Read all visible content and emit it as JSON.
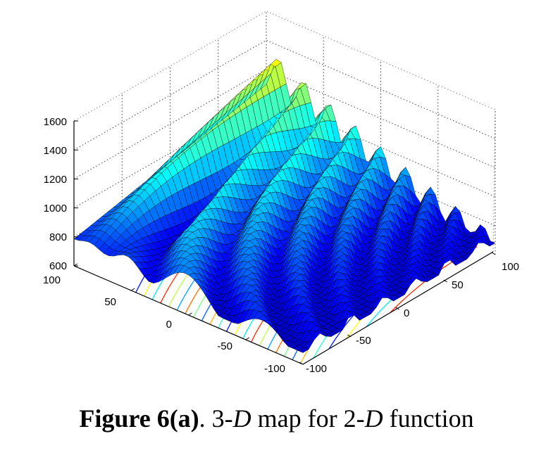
{
  "chart_data": {
    "type": "surface",
    "zlim": [
      600,
      1600
    ],
    "zticks": [
      "600",
      "800",
      "1000",
      "1200",
      "1400",
      "1600"
    ],
    "xlim": [
      -100,
      100
    ],
    "xticks": [
      "-100",
      "-50",
      "0",
      "50",
      "100"
    ],
    "ylim": [
      -100,
      100
    ],
    "yticks": [
      "100",
      "50",
      "0",
      "-50",
      "-100"
    ],
    "grid": true,
    "colormap": "jet",
    "contour_floor": true
  },
  "caption": {
    "label": "Figure 6(a)",
    "sep": ". 3-",
    "d1": "D",
    "mid": " map for 2-",
    "d2": "D",
    "end": " function"
  }
}
